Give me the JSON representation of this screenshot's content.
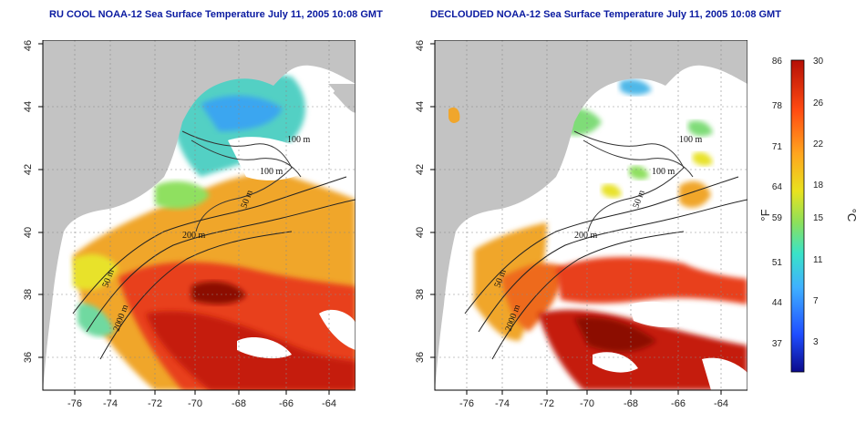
{
  "titles": {
    "left": "RU COOL NOAA-12 Sea Surface Temperature July 11, 2005 10:08 GMT",
    "right": "DECLOUDED NOAA-12 Sea Surface Temperature July 11, 2005 10:08 GMT"
  },
  "axes": {
    "lon_ticks": [
      "-76",
      "-74",
      "-72",
      "-70",
      "-68",
      "-66",
      "-64"
    ],
    "lat_ticks": [
      "36",
      "38",
      "40",
      "42",
      "44",
      "46"
    ]
  },
  "contour_labels": {
    "left": [
      "100 m",
      "100 m",
      "50 m",
      "200 m",
      "50 m",
      "2000 m"
    ],
    "right": [
      "100 m",
      "100 m",
      "50 m",
      "200 m",
      "50 m",
      "2000 m"
    ]
  },
  "colorbar": {
    "fahrenheit_ticks": [
      "86",
      "78",
      "71",
      "64",
      "59",
      "51",
      "44",
      "37"
    ],
    "celsius_ticks": [
      "30",
      "26",
      "22",
      "18",
      "15",
      "11",
      "7",
      "3"
    ],
    "fahrenheit_unit": "°F",
    "celsius_unit": "°C",
    "colors": [
      "#0b0b8c",
      "#1f4dff",
      "#3fb0ff",
      "#39e3c8",
      "#8de05a",
      "#e9e21f",
      "#ffa51e",
      "#ff4b12",
      "#b50f06"
    ]
  },
  "colors": {
    "land": "#c3c3c3",
    "cloud": "#ffffff",
    "frame": "#000000",
    "title": "#0a1aa0"
  }
}
